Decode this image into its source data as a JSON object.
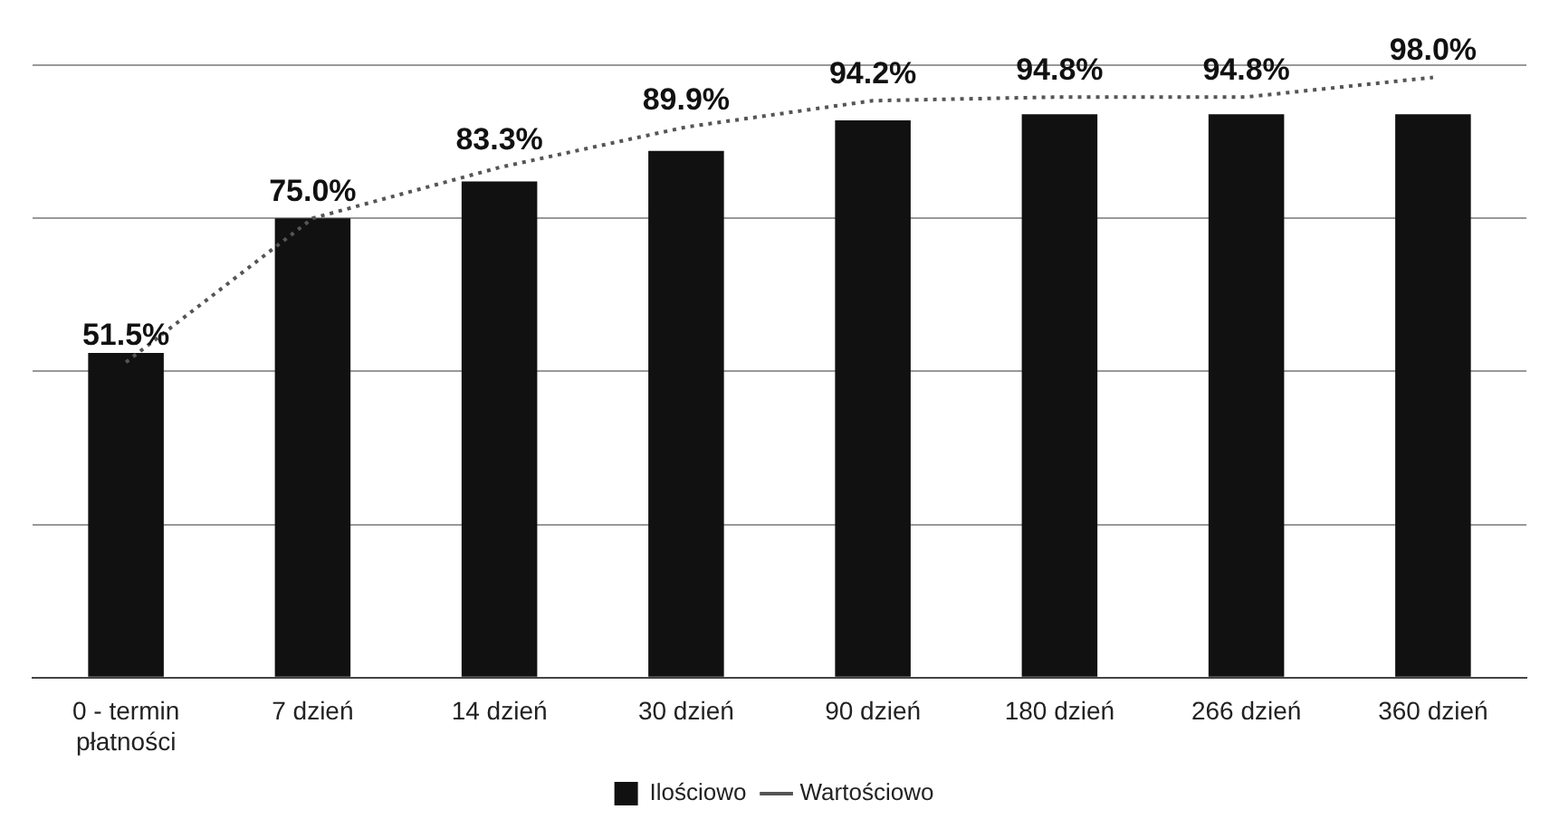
{
  "chart_data": {
    "type": "bar",
    "categories": [
      "0 - termin płatności",
      "7 dzień",
      "14 dzień",
      "30 dzień",
      "90 dzień",
      "180 dzień",
      "266 dzień",
      "360 dzień"
    ],
    "series": [
      {
        "name": "Ilościowo",
        "color": "#111111",
        "values": [
          53,
          75,
          81,
          86,
          91,
          92,
          92,
          92
        ]
      },
      {
        "name": "Wartościowo",
        "type": "line",
        "color": "#555555",
        "values": [
          51.5,
          75.0,
          83.3,
          89.9,
          94.2,
          94.8,
          94.8,
          98.0
        ],
        "value_labels": [
          "51.5%",
          "75.0%",
          "83.3%",
          "89.9%",
          "94.2%",
          "94.8%",
          "94.8%",
          "98.0%"
        ]
      }
    ],
    "ylim": [
      0,
      100
    ],
    "yticks": [
      {
        "value": 0,
        "label": null
      },
      {
        "value": 25,
        "label": null
      },
      {
        "value": 50,
        "label": null
      },
      {
        "value": 75,
        "label": null
      },
      {
        "value": 100,
        "label": null
      }
    ],
    "grid": "y",
    "legend": "bottom",
    "marker": "none",
    "line_style": "dotted"
  }
}
